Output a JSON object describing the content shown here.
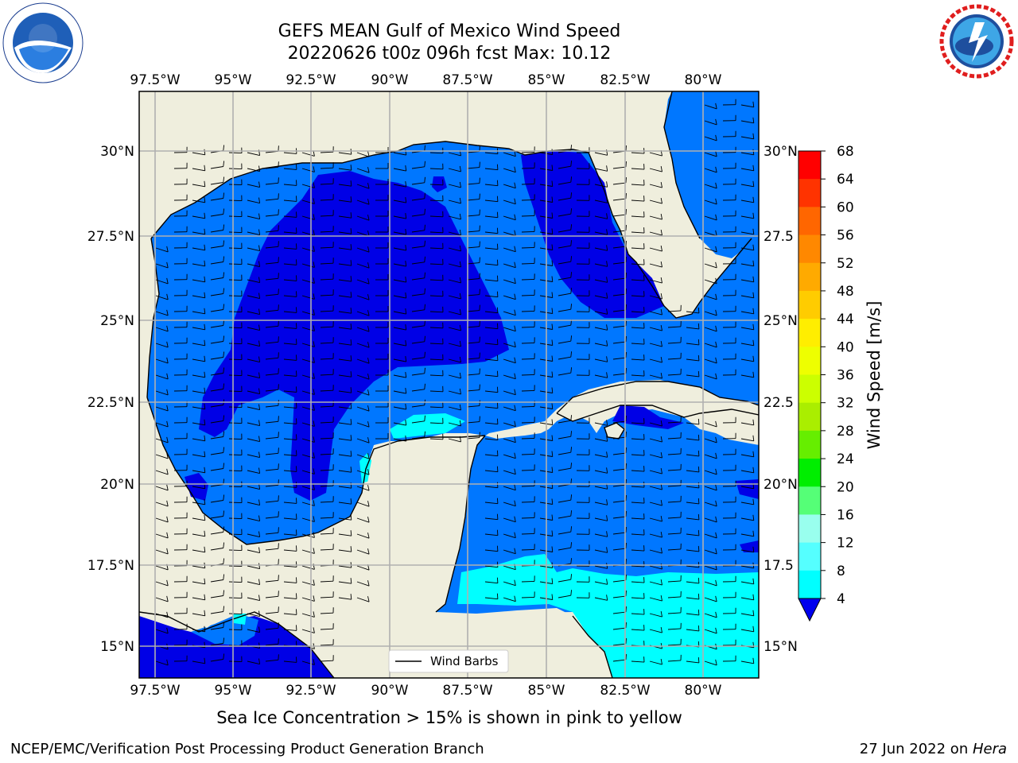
{
  "header": {
    "title_line1": "GEFS MEAN Gulf of Mexico Wind Speed",
    "title_line2": "20220626 t00z 096h fcst   Max: 10.12"
  },
  "map": {
    "lon_labels": [
      "97.5°W",
      "95°W",
      "92.5°W",
      "90°W",
      "87.5°W",
      "85°W",
      "82.5°W",
      "80°W"
    ],
    "lat_labels": [
      "30°N",
      "27.5°N",
      "25°N",
      "22.5°N",
      "20°N",
      "17.5°N",
      "15°N"
    ],
    "right_lat_labels": [
      "30°N",
      "27.5",
      "25°N",
      "22.5",
      "20°N",
      "17.5",
      "15°N"
    ],
    "legend_label": "Wind Barbs",
    "land_color": "#efeedd",
    "ocean_colors": {
      "band_4_8": "#0077ff",
      "band_below_4": "#0000e6",
      "band_8_12": "#00ffff"
    }
  },
  "colorbar": {
    "label": "Wind Speed [m/s]",
    "ticks": [
      "68",
      "64",
      "60",
      "56",
      "52",
      "48",
      "44",
      "40",
      "36",
      "32",
      "28",
      "24",
      "20",
      "16",
      "12",
      "8",
      "4"
    ],
    "colors": [
      "#ff0000",
      "#ff3300",
      "#ff6600",
      "#ff8800",
      "#ffaa00",
      "#ffcc00",
      "#ffee00",
      "#eeff00",
      "#ccff00",
      "#aaee00",
      "#66ee00",
      "#00ee00",
      "#55ff77",
      "#99ffee",
      "#55ffff",
      "#00ffff",
      "#0077ff"
    ],
    "under_color": "#0000ee"
  },
  "caption": "Sea Ice Concentration > 15% is shown in pink to yellow",
  "footer": {
    "left": "NCEP/EMC/Verification Post Processing Product Generation Branch",
    "right_date": "27 Jun 2022 on ",
    "right_host": "Hera"
  }
}
